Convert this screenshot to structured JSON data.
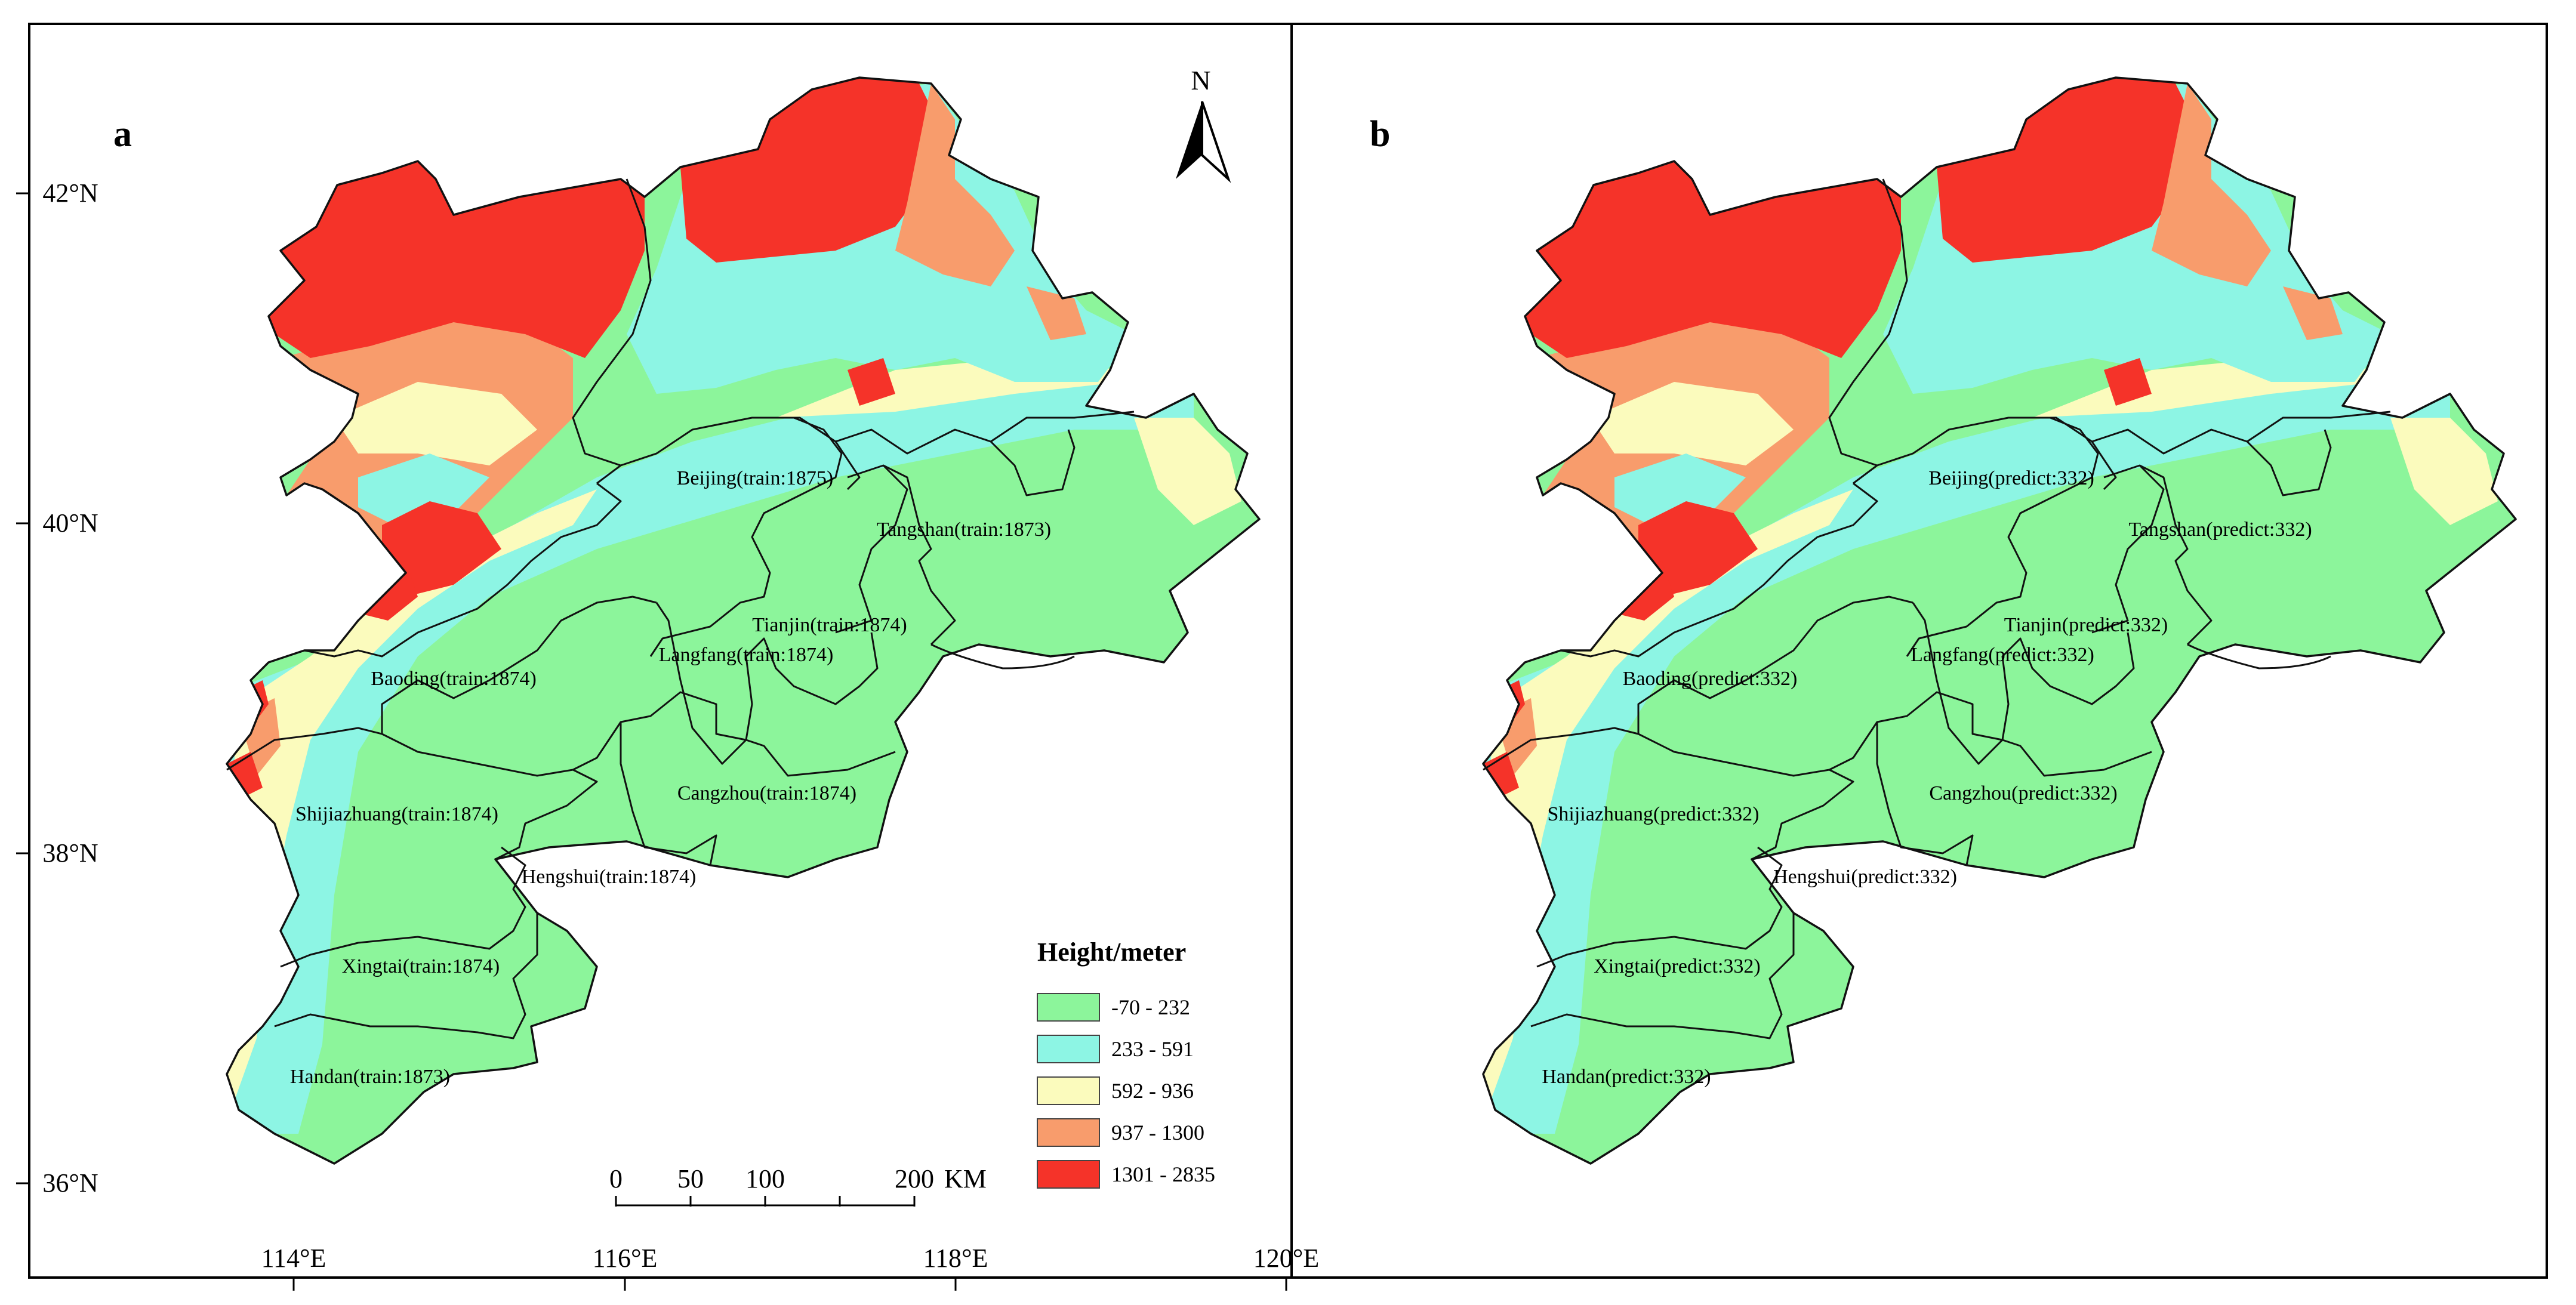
{
  "panels": [
    {
      "letter": "a",
      "cities": [
        {
          "name": "Beijing",
          "label": "Beijing(train:1875)"
        },
        {
          "name": "Tangshan",
          "label": "Tangshan(train:1873)"
        },
        {
          "name": "Tianjin",
          "label": "Tianjin(train:1874)"
        },
        {
          "name": "Langfang",
          "label": "Langfang(train:1874)"
        },
        {
          "name": "Baoding",
          "label": "Baoding(train:1874)"
        },
        {
          "name": "Cangzhou",
          "label": "Cangzhou(train:1874)"
        },
        {
          "name": "Shijiazhuang",
          "label": "Shijiazhuang(train:1874)"
        },
        {
          "name": "Hengshui",
          "label": "Hengshui(train:1874)"
        },
        {
          "name": "Xingtai",
          "label": "Xingtai(train:1874)"
        },
        {
          "name": "Handan",
          "label": "Handan(train:1873)"
        }
      ]
    },
    {
      "letter": "b",
      "cities": [
        {
          "name": "Beijing",
          "label": "Beijing(predict:332)"
        },
        {
          "name": "Tangshan",
          "label": "Tangshan(predict:332)"
        },
        {
          "name": "Tianjin",
          "label": "Tianjin(predict:332)"
        },
        {
          "name": "Langfang",
          "label": "Langfang(predict:332)"
        },
        {
          "name": "Baoding",
          "label": "Baoding(predict:332)"
        },
        {
          "name": "Cangzhou",
          "label": "Cangzhou(predict:332)"
        },
        {
          "name": "Shijiazhuang",
          "label": "Shijiazhuang(predict:332)"
        },
        {
          "name": "Hengshui",
          "label": "Hengshui(predict:332)"
        },
        {
          "name": "Xingtai",
          "label": "Xingtai(predict:332)"
        },
        {
          "name": "Handan",
          "label": "Handan(predict:332)"
        }
      ]
    }
  ],
  "lat_labels": [
    "42°N",
    "40°N",
    "38°N",
    "36°N"
  ],
  "lon_labels": [
    "114°E",
    "116°E",
    "118°E",
    "120°E"
  ],
  "north_arrow": {
    "label": "N"
  },
  "scale_bar": {
    "ticks": [
      "0",
      "50",
      "100",
      "200"
    ],
    "unit": "KM"
  },
  "legend": {
    "title": "Height/meter",
    "classes": [
      {
        "label": "-70 - 232",
        "color": "#8cf59b"
      },
      {
        "label": "233 - 591",
        "color": "#8df5e4"
      },
      {
        "label": "592 - 936",
        "color": "#fbfbbd"
      },
      {
        "label": "937 - 1300",
        "color": "#f89c6c"
      },
      {
        "label": "1301 - 2835",
        "color": "#f53329"
      }
    ]
  },
  "colors": {
    "border": "#000000",
    "boundary": "#111111"
  }
}
